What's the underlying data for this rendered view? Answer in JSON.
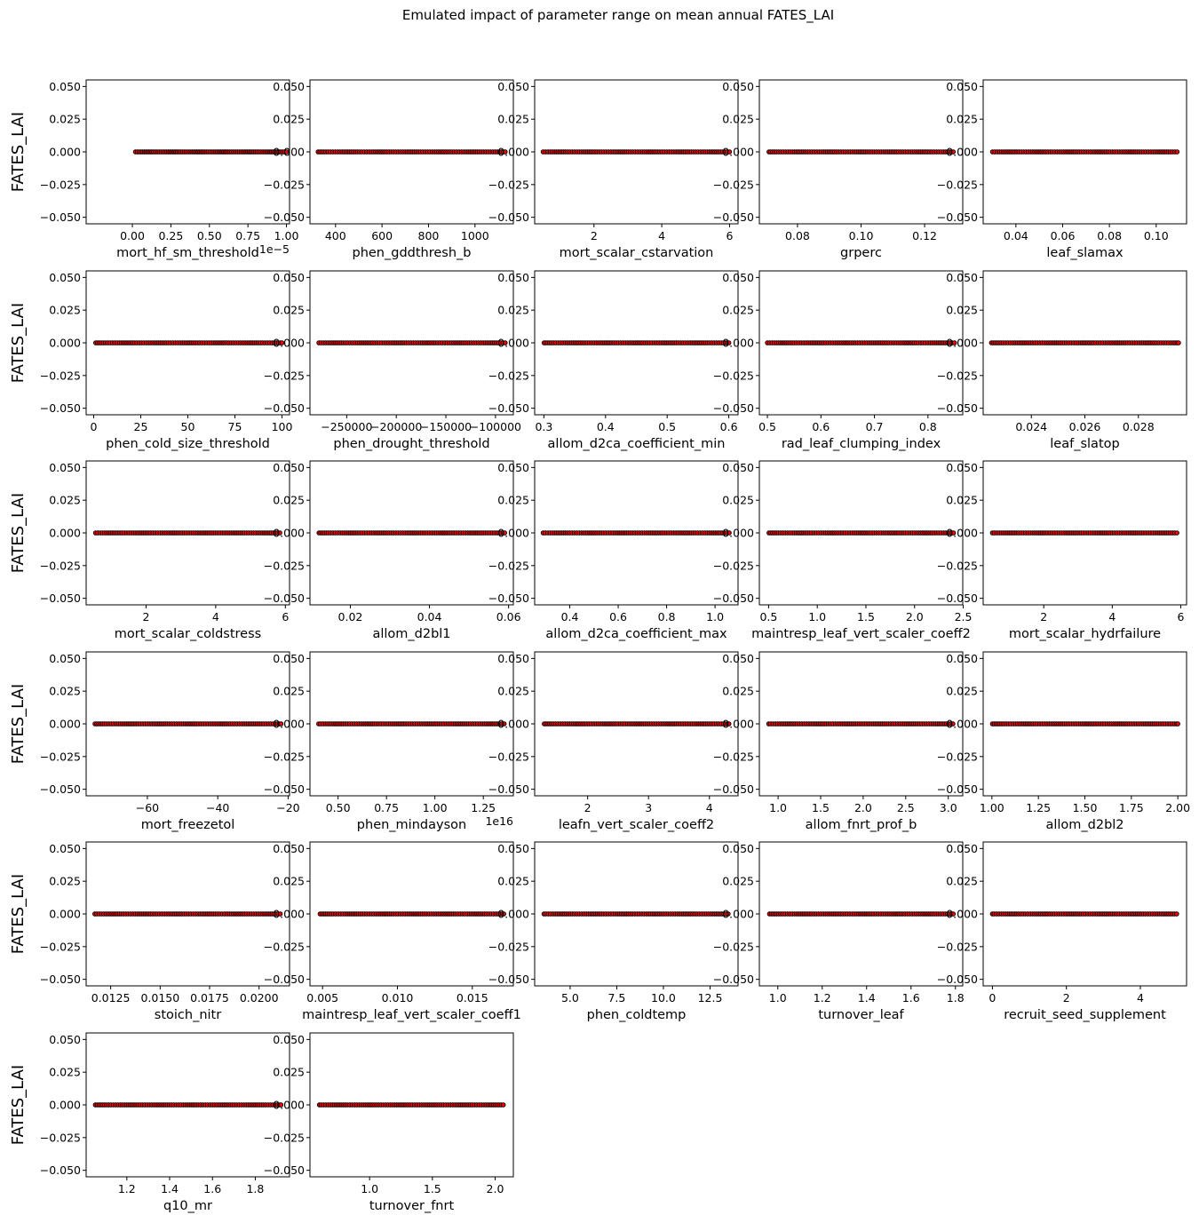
{
  "figure": {
    "title": "Emulated impact of parameter range on mean annual FATES_LAI"
  },
  "colors": {
    "marker_face": "#ff0000",
    "marker_edge": "#000000",
    "axes": "#000000",
    "background": "#ffffff"
  },
  "chart_data": [
    {
      "type": "scatter",
      "xlabel": "mort_hf_sm_threshold",
      "ylabel": "FATES_LAI",
      "xlim": [
        -3e-06,
        1.02e-05
      ],
      "ylim": [
        -0.055,
        0.055
      ],
      "xticks": [
        "0.00",
        "0.25",
        "0.50",
        "0.75",
        "1.00"
      ],
      "xtick_values": [
        0,
        2.5e-06,
        5e-06,
        7.5e-06,
        1e-05
      ],
      "offset_label": "1e−5",
      "yticks": [
        "−0.050",
        "−0.025",
        "0.000",
        "0.025",
        "0.050"
      ],
      "ytick_values": [
        -0.05,
        -0.025,
        0,
        0.025,
        0.05
      ],
      "x": [
        2e-07,
        1e-05
      ],
      "y": [
        0,
        0
      ]
    },
    {
      "type": "scatter",
      "xlabel": "phen_gddthresh_b",
      "ylabel": "FATES_LAI",
      "xlim": [
        290,
        1165
      ],
      "ylim": [
        -0.055,
        0.055
      ],
      "xticks": [
        "400",
        "600",
        "800",
        "1000"
      ],
      "xtick_values": [
        400,
        600,
        800,
        1000
      ],
      "yticks": [
        "−0.050",
        "−0.025",
        "0.000",
        "0.025",
        "0.050"
      ],
      "ytick_values": [
        -0.05,
        -0.025,
        0,
        0.025,
        0.05
      ],
      "x": [
        325,
        1130
      ],
      "y": [
        0,
        0
      ]
    },
    {
      "type": "scatter",
      "xlabel": "mort_scalar_cstarvation",
      "ylabel": "FATES_LAI",
      "xlim": [
        0.25,
        6.25
      ],
      "ylim": [
        -0.055,
        0.055
      ],
      "xticks": [
        "2",
        "4",
        "6"
      ],
      "xtick_values": [
        2,
        4,
        6
      ],
      "yticks": [
        "−0.050",
        "−0.025",
        "0.000",
        "0.025",
        "0.050"
      ],
      "ytick_values": [
        -0.05,
        -0.025,
        0,
        0.025,
        0.05
      ],
      "x": [
        0.5,
        6.0
      ],
      "y": [
        0,
        0
      ]
    },
    {
      "type": "scatter",
      "xlabel": "grperc",
      "ylabel": "FATES_LAI",
      "xlim": [
        0.068,
        0.132
      ],
      "ylim": [
        -0.055,
        0.055
      ],
      "xticks": [
        "0.08",
        "0.10",
        "0.12"
      ],
      "xtick_values": [
        0.08,
        0.1,
        0.12
      ],
      "yticks": [
        "−0.050",
        "−0.025",
        "0.000",
        "0.025",
        "0.050"
      ],
      "ytick_values": [
        -0.05,
        -0.025,
        0,
        0.025,
        0.05
      ],
      "x": [
        0.071,
        0.129
      ],
      "y": [
        0,
        0
      ]
    },
    {
      "type": "scatter",
      "xlabel": "leaf_slamax",
      "ylabel": "FATES_LAI",
      "xlim": [
        0.026,
        0.113
      ],
      "ylim": [
        -0.055,
        0.055
      ],
      "xticks": [
        "0.04",
        "0.06",
        "0.08",
        "0.10"
      ],
      "xtick_values": [
        0.04,
        0.06,
        0.08,
        0.1
      ],
      "yticks": [
        "−0.050",
        "−0.025",
        "0.000",
        "0.025",
        "0.050"
      ],
      "ytick_values": [
        -0.05,
        -0.025,
        0,
        0.025,
        0.05
      ],
      "x": [
        0.03,
        0.109
      ],
      "y": [
        0,
        0
      ]
    },
    {
      "type": "scatter",
      "xlabel": "phen_cold_size_threshold",
      "ylabel": "FATES_LAI",
      "xlim": [
        -4,
        104
      ],
      "ylim": [
        -0.055,
        0.055
      ],
      "xticks": [
        "0",
        "25",
        "50",
        "75",
        "100"
      ],
      "xtick_values": [
        0,
        25,
        50,
        75,
        100
      ],
      "yticks": [
        "−0.050",
        "−0.025",
        "0.000",
        "0.025",
        "0.050"
      ],
      "ytick_values": [
        -0.05,
        -0.025,
        0,
        0.025,
        0.05
      ],
      "x": [
        1,
        100
      ],
      "y": [
        0,
        0
      ]
    },
    {
      "type": "scatter",
      "xlabel": "phen_drought_threshold",
      "ylabel": "FATES_LAI",
      "xlim": [
        -287000,
        -82000
      ],
      "ylim": [
        -0.055,
        0.055
      ],
      "xticks": [
        "−250000",
        "−200000",
        "−150000",
        "−100000"
      ],
      "xtick_values": [
        -250000,
        -200000,
        -150000,
        -100000
      ],
      "yticks": [
        "−0.050",
        "−0.025",
        "0.000",
        "0.025",
        "0.050"
      ],
      "ytick_values": [
        -0.05,
        -0.025,
        0,
        0.025,
        0.05
      ],
      "x": [
        -278000,
        -90000
      ],
      "y": [
        0,
        0
      ]
    },
    {
      "type": "scatter",
      "xlabel": "allom_d2ca_coefficient_min",
      "ylabel": "FATES_LAI",
      "xlim": [
        0.285,
        0.615
      ],
      "ylim": [
        -0.055,
        0.055
      ],
      "xticks": [
        "0.3",
        "0.4",
        "0.5",
        "0.6"
      ],
      "xtick_values": [
        0.3,
        0.4,
        0.5,
        0.6
      ],
      "yticks": [
        "−0.050",
        "−0.025",
        "0.000",
        "0.025",
        "0.050"
      ],
      "ytick_values": [
        -0.05,
        -0.025,
        0,
        0.025,
        0.05
      ],
      "x": [
        0.3,
        0.6
      ],
      "y": [
        0,
        0
      ]
    },
    {
      "type": "scatter",
      "xlabel": "rad_leaf_clumping_index",
      "ylabel": "FATES_LAI",
      "xlim": [
        0.485,
        0.865
      ],
      "ylim": [
        -0.055,
        0.055
      ],
      "xticks": [
        "0.5",
        "0.6",
        "0.7",
        "0.8"
      ],
      "xtick_values": [
        0.5,
        0.6,
        0.7,
        0.8
      ],
      "yticks": [
        "−0.050",
        "−0.025",
        "0.000",
        "0.025",
        "0.050"
      ],
      "ytick_values": [
        -0.05,
        -0.025,
        0,
        0.025,
        0.05
      ],
      "x": [
        0.5,
        0.85
      ],
      "y": [
        0,
        0
      ]
    },
    {
      "type": "scatter",
      "xlabel": "leaf_slatop",
      "ylabel": "FATES_LAI",
      "xlim": [
        0.0222,
        0.0298
      ],
      "ylim": [
        -0.055,
        0.055
      ],
      "xticks": [
        "0.024",
        "0.026",
        "0.028"
      ],
      "xtick_values": [
        0.024,
        0.026,
        0.028
      ],
      "yticks": [
        "−0.050",
        "−0.025",
        "0.000",
        "0.025",
        "0.050"
      ],
      "ytick_values": [
        -0.05,
        -0.025,
        0,
        0.025,
        0.05
      ],
      "x": [
        0.0225,
        0.0295
      ],
      "y": [
        0,
        0
      ]
    },
    {
      "type": "scatter",
      "xlabel": "mort_scalar_coldstress",
      "ylabel": "FATES_LAI",
      "xlim": [
        0.28,
        6.12
      ],
      "ylim": [
        -0.055,
        0.055
      ],
      "xticks": [
        "2",
        "4",
        "6"
      ],
      "xtick_values": [
        2,
        4,
        6
      ],
      "yticks": [
        "−0.050",
        "−0.025",
        "0.000",
        "0.025",
        "0.050"
      ],
      "ytick_values": [
        -0.05,
        -0.025,
        0,
        0.025,
        0.05
      ],
      "x": [
        0.55,
        5.85
      ],
      "y": [
        0,
        0
      ]
    },
    {
      "type": "scatter",
      "xlabel": "allom_d2bl1",
      "ylabel": "FATES_LAI",
      "xlim": [
        0.0098,
        0.0612
      ],
      "ylim": [
        -0.055,
        0.055
      ],
      "xticks": [
        "0.02",
        "0.04",
        "0.06"
      ],
      "xtick_values": [
        0.02,
        0.04,
        0.06
      ],
      "yticks": [
        "−0.050",
        "−0.025",
        "0.000",
        "0.025",
        "0.050"
      ],
      "ytick_values": [
        -0.05,
        -0.025,
        0,
        0.025,
        0.05
      ],
      "x": [
        0.012,
        0.059
      ],
      "y": [
        0,
        0
      ]
    },
    {
      "type": "scatter",
      "xlabel": "allom_d2ca_coefficient_max",
      "ylabel": "FATES_LAI",
      "xlim": [
        0.255,
        1.095
      ],
      "ylim": [
        -0.055,
        0.055
      ],
      "xticks": [
        "0.4",
        "0.6",
        "0.8",
        "1.0"
      ],
      "xtick_values": [
        0.4,
        0.6,
        0.8,
        1.0
      ],
      "yticks": [
        "−0.050",
        "−0.025",
        "0.000",
        "0.025",
        "0.050"
      ],
      "ytick_values": [
        -0.05,
        -0.025,
        0,
        0.025,
        0.05
      ],
      "x": [
        0.29,
        1.06
      ],
      "y": [
        0,
        0
      ]
    },
    {
      "type": "scatter",
      "xlabel": "maintresp_leaf_vert_scaler_coeff2",
      "ylabel": "FATES_LAI",
      "xlim": [
        0.405,
        2.495
      ],
      "ylim": [
        -0.055,
        0.055
      ],
      "xticks": [
        "0.5",
        "1.0",
        "1.5",
        "2.0",
        "2.5"
      ],
      "xtick_values": [
        0.5,
        1.0,
        1.5,
        2.0,
        2.5
      ],
      "yticks": [
        "−0.050",
        "−0.025",
        "0.000",
        "0.025",
        "0.050"
      ],
      "ytick_values": [
        -0.05,
        -0.025,
        0,
        0.025,
        0.05
      ],
      "x": [
        0.5,
        2.4
      ],
      "y": [
        0,
        0
      ]
    },
    {
      "type": "scatter",
      "xlabel": "mort_scalar_hydrfailure",
      "ylabel": "FATES_LAI",
      "xlim": [
        0.23,
        6.17
      ],
      "ylim": [
        -0.055,
        0.055
      ],
      "xticks": [
        "2",
        "4",
        "6"
      ],
      "xtick_values": [
        2,
        4,
        6
      ],
      "yticks": [
        "−0.050",
        "−0.025",
        "0.000",
        "0.025",
        "0.050"
      ],
      "ytick_values": [
        -0.05,
        -0.025,
        0,
        0.025,
        0.05
      ],
      "x": [
        0.5,
        5.9
      ],
      "y": [
        0,
        0
      ]
    },
    {
      "type": "scatter",
      "xlabel": "mort_freezetol",
      "ylabel": "FATES_LAI",
      "xlim": [
        -77.4,
        -19.6
      ],
      "ylim": [
        -0.055,
        0.055
      ],
      "xticks": [
        "−60",
        "−40",
        "−20"
      ],
      "xtick_values": [
        -60,
        -40,
        -20
      ],
      "yticks": [
        "−0.050",
        "−0.025",
        "0.000",
        "0.025",
        "0.050"
      ],
      "ytick_values": [
        -0.05,
        -0.025,
        0,
        0.025,
        0.05
      ],
      "x": [
        -75,
        -22
      ],
      "y": [
        0,
        0
      ]
    },
    {
      "type": "scatter",
      "xlabel": "phen_mindayson",
      "ylabel": "FATES_LAI",
      "xlim": [
        3550000000000000.0,
        1.405e+16
      ],
      "ylim": [
        -0.055,
        0.055
      ],
      "xticks": [
        "0.50",
        "0.75",
        "1.00",
        "1.25"
      ],
      "xtick_values": [
        5000000000000000.0,
        7500000000000000.0,
        1e+16,
        1.25e+16
      ],
      "offset_label": "1e16",
      "yticks": [
        "−0.050",
        "−0.025",
        "0.000",
        "0.025",
        "0.050"
      ],
      "ytick_values": [
        -0.05,
        -0.025,
        0,
        0.025,
        0.05
      ],
      "x": [
        4000000000000000.0,
        1.36e+16
      ],
      "y": [
        0,
        0
      ]
    },
    {
      "type": "scatter",
      "xlabel": "leafn_vert_scaler_coeff2",
      "ylabel": "FATES_LAI",
      "xlim": [
        1.13,
        4.47
      ],
      "ylim": [
        -0.055,
        0.055
      ],
      "xticks": [
        "2",
        "3",
        "4"
      ],
      "xtick_values": [
        2,
        3,
        4
      ],
      "yticks": [
        "−0.050",
        "−0.025",
        "0.000",
        "0.025",
        "0.050"
      ],
      "ytick_values": [
        -0.05,
        -0.025,
        0,
        0.025,
        0.05
      ],
      "x": [
        1.28,
        4.32
      ],
      "y": [
        0,
        0
      ]
    },
    {
      "type": "scatter",
      "xlabel": "allom_fnrt_prof_b",
      "ylabel": "FATES_LAI",
      "xlim": [
        0.78,
        3.17
      ],
      "ylim": [
        -0.055,
        0.055
      ],
      "xticks": [
        "1.0",
        "1.5",
        "2.0",
        "2.5",
        "3.0"
      ],
      "xtick_values": [
        1.0,
        1.5,
        2.0,
        2.5,
        3.0
      ],
      "yticks": [
        "−0.050",
        "−0.025",
        "0.000",
        "0.025",
        "0.050"
      ],
      "ytick_values": [
        -0.05,
        -0.025,
        0,
        0.025,
        0.05
      ],
      "x": [
        0.89,
        3.06
      ],
      "y": [
        0,
        0
      ]
    },
    {
      "type": "scatter",
      "xlabel": "allom_d2bl2",
      "ylabel": "FATES_LAI",
      "xlim": [
        0.953,
        2.047
      ],
      "ylim": [
        -0.055,
        0.055
      ],
      "xticks": [
        "1.00",
        "1.25",
        "1.50",
        "1.75",
        "2.00"
      ],
      "xtick_values": [
        1.0,
        1.25,
        1.5,
        1.75,
        2.0
      ],
      "yticks": [
        "−0.050",
        "−0.025",
        "0.000",
        "0.025",
        "0.050"
      ],
      "ytick_values": [
        -0.05,
        -0.025,
        0,
        0.025,
        0.05
      ],
      "x": [
        1.0,
        2.0
      ],
      "y": [
        0,
        0
      ]
    },
    {
      "type": "scatter",
      "xlabel": "stoich_nitr",
      "ylabel": "FATES_LAI",
      "xlim": [
        0.01126,
        0.02154
      ],
      "ylim": [
        -0.055,
        0.055
      ],
      "xticks": [
        "0.0125",
        "0.0150",
        "0.0175",
        "0.0200"
      ],
      "xtick_values": [
        0.0125,
        0.015,
        0.0175,
        0.02
      ],
      "yticks": [
        "−0.050",
        "−0.025",
        "0.000",
        "0.025",
        "0.050"
      ],
      "ytick_values": [
        -0.05,
        -0.025,
        0,
        0.025,
        0.05
      ],
      "x": [
        0.0117,
        0.0211
      ],
      "y": [
        0,
        0
      ]
    },
    {
      "type": "scatter",
      "xlabel": "maintresp_leaf_vert_scaler_coeff1",
      "ylabel": "FATES_LAI",
      "xlim": [
        0.00416,
        0.01774
      ],
      "ylim": [
        -0.055,
        0.055
      ],
      "xticks": [
        "0.005",
        "0.010",
        "0.015"
      ],
      "xtick_values": [
        0.005,
        0.01,
        0.015
      ],
      "yticks": [
        "−0.050",
        "−0.025",
        "0.000",
        "0.025",
        "0.050"
      ],
      "ytick_values": [
        -0.05,
        -0.025,
        0,
        0.025,
        0.05
      ],
      "x": [
        0.0048,
        0.0171
      ],
      "y": [
        0,
        0
      ]
    },
    {
      "type": "scatter",
      "xlabel": "phen_coldtemp",
      "ylabel": "FATES_LAI",
      "xlim": [
        3.1,
        14.0
      ],
      "ylim": [
        -0.055,
        0.055
      ],
      "xticks": [
        "5.0",
        "7.5",
        "10.0",
        "12.5"
      ],
      "xtick_values": [
        5.0,
        7.5,
        10.0,
        12.5
      ],
      "yticks": [
        "−0.050",
        "−0.025",
        "0.000",
        "0.025",
        "0.050"
      ],
      "ytick_values": [
        -0.05,
        -0.025,
        0,
        0.025,
        0.05
      ],
      "x": [
        3.6,
        13.5
      ],
      "y": [
        0,
        0
      ]
    },
    {
      "type": "scatter",
      "xlabel": "turnover_leaf",
      "ylabel": "FATES_LAI",
      "xlim": [
        0.917,
        1.833
      ],
      "ylim": [
        -0.055,
        0.055
      ],
      "xticks": [
        "1.0",
        "1.2",
        "1.4",
        "1.6",
        "1.8"
      ],
      "xtick_values": [
        1.0,
        1.2,
        1.4,
        1.6,
        1.8
      ],
      "yticks": [
        "−0.050",
        "−0.025",
        "0.000",
        "0.025",
        "0.050"
      ],
      "ytick_values": [
        -0.05,
        -0.025,
        0,
        0.025,
        0.05
      ],
      "x": [
        0.96,
        1.79
      ],
      "y": [
        0,
        0
      ]
    },
    {
      "type": "scatter",
      "xlabel": "recruit_seed_supplement",
      "ylabel": "FATES_LAI",
      "xlim": [
        -0.25,
        5.25
      ],
      "ylim": [
        -0.055,
        0.055
      ],
      "xticks": [
        "0",
        "2",
        "4"
      ],
      "xtick_values": [
        0,
        2,
        4
      ],
      "yticks": [
        "−0.050",
        "−0.025",
        "0.000",
        "0.025",
        "0.050"
      ],
      "ytick_values": [
        -0.05,
        -0.025,
        0,
        0.025,
        0.05
      ],
      "x": [
        0,
        5
      ],
      "y": [
        0,
        0
      ]
    },
    {
      "type": "scatter",
      "xlabel": "q10_mr",
      "ylabel": "FATES_LAI",
      "xlim": [
        1.01,
        1.96
      ],
      "ylim": [
        -0.055,
        0.055
      ],
      "xticks": [
        "1.2",
        "1.4",
        "1.6",
        "1.8"
      ],
      "xtick_values": [
        1.2,
        1.4,
        1.6,
        1.8
      ],
      "yticks": [
        "−0.050",
        "−0.025",
        "0.000",
        "0.025",
        "0.050"
      ],
      "ytick_values": [
        -0.05,
        -0.025,
        0,
        0.025,
        0.05
      ],
      "x": [
        1.05,
        1.92
      ],
      "y": [
        0,
        0
      ]
    },
    {
      "type": "scatter",
      "xlabel": "turnover_fnrt",
      "ylabel": "FATES_LAI",
      "xlim": [
        0.525,
        2.145
      ],
      "ylim": [
        -0.055,
        0.055
      ],
      "xticks": [
        "1.0",
        "1.5",
        "2.0"
      ],
      "xtick_values": [
        1.0,
        1.5,
        2.0
      ],
      "yticks": [
        "−0.050",
        "−0.025",
        "0.000",
        "0.025",
        "0.050"
      ],
      "ytick_values": [
        -0.05,
        -0.025,
        0,
        0.025,
        0.05
      ],
      "x": [
        0.6,
        2.07
      ],
      "y": [
        0,
        0
      ]
    }
  ]
}
